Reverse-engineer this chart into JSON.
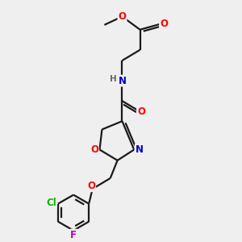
{
  "bg_color": "#efefef",
  "bond_color": "#1a1a1a",
  "atom_colors": {
    "O": "#ff0000",
    "N": "#0000cc",
    "Cl": "#00bb00",
    "F": "#bb00bb",
    "H": "#666666",
    "C": "#1a1a1a"
  },
  "lw": 1.6,
  "font_size": 8.5,
  "figsize": [
    3.0,
    3.0
  ],
  "dpi": 100,
  "xlim": [
    0,
    10
  ],
  "ylim": [
    0,
    10
  ]
}
